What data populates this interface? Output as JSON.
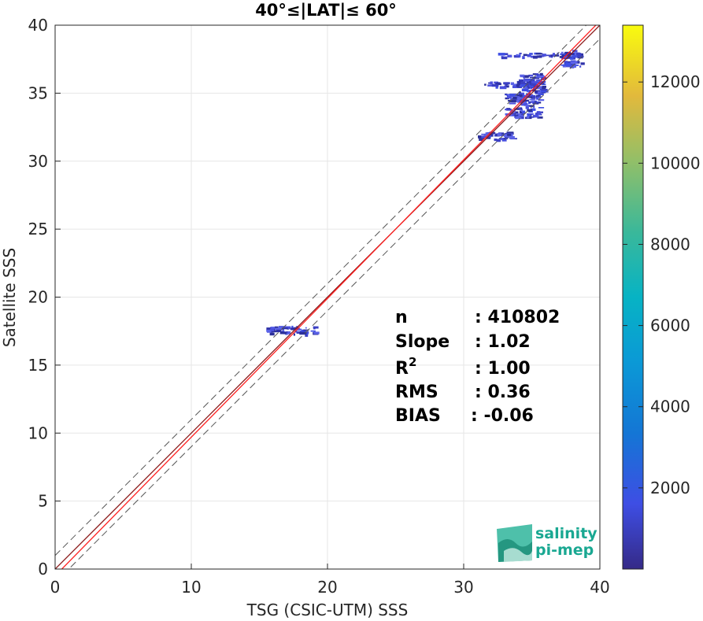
{
  "chart_data": {
    "type": "heatmap",
    "title": "40°≤|LAT|≤ 60°",
    "xlabel": "TSG (CSIC-UTM) SSS",
    "ylabel": "Satellite SSS",
    "xlim": [
      0,
      40
    ],
    "ylim": [
      0,
      40
    ],
    "xticks": [
      "0",
      "10",
      "20",
      "30",
      "40"
    ],
    "yticks": [
      "0",
      "5",
      "10",
      "15",
      "20",
      "25",
      "30",
      "35",
      "40"
    ],
    "grid": true,
    "colorbar": {
      "range": [
        0,
        13400
      ],
      "ticks": [
        "2000",
        "4000",
        "6000",
        "8000",
        "10000",
        "12000"
      ],
      "colormap": "parula"
    },
    "reference_lines": [
      {
        "name": "1:1",
        "style": "solid",
        "color": "#8b1a1a",
        "intercept": 0
      },
      {
        "name": "fit",
        "style": "solid",
        "color": "#ff2020",
        "slope": 1.02,
        "intercept": -0.5
      },
      {
        "name": "+1",
        "style": "dashed",
        "color": "#555555",
        "intercept": 1
      },
      {
        "name": "-1",
        "style": "dashed",
        "color": "#555555",
        "intercept": -1
      }
    ],
    "stats": [
      {
        "label": "n",
        "value": ": 410802"
      },
      {
        "label": "Slope",
        "value": ": 1.02"
      },
      {
        "label": "R",
        "sup": "2",
        "value": ": 1.00"
      },
      {
        "label": "RMS",
        "value": ": 0.36"
      },
      {
        "label": "BIAS",
        "value": ": -0.06"
      }
    ],
    "density_clusters": [
      {
        "x": [
          37.0,
          38.6
        ],
        "y": [
          37.0,
          38.2
        ],
        "level": 0.3
      },
      {
        "x": [
          32.5,
          38.5
        ],
        "y": [
          37.7,
          38.0
        ],
        "level": 0.1
      },
      {
        "x": [
          34.0,
          35.8
        ],
        "y": [
          35.0,
          36.5
        ],
        "level": 0.25
      },
      {
        "x": [
          31.5,
          35.5
        ],
        "y": [
          35.5,
          35.9
        ],
        "level": 0.08
      },
      {
        "x": [
          33.0,
          35.5
        ],
        "y": [
          33.2,
          35.0
        ],
        "level": 0.18
      },
      {
        "x": [
          31.0,
          33.5
        ],
        "y": [
          31.6,
          32.2
        ],
        "level": 0.08
      },
      {
        "x": [
          15.5,
          19.0
        ],
        "y": [
          17.3,
          17.9
        ],
        "level": 0.12
      }
    ],
    "logo": {
      "line1": "salinity",
      "line2": "pi-mep"
    }
  }
}
